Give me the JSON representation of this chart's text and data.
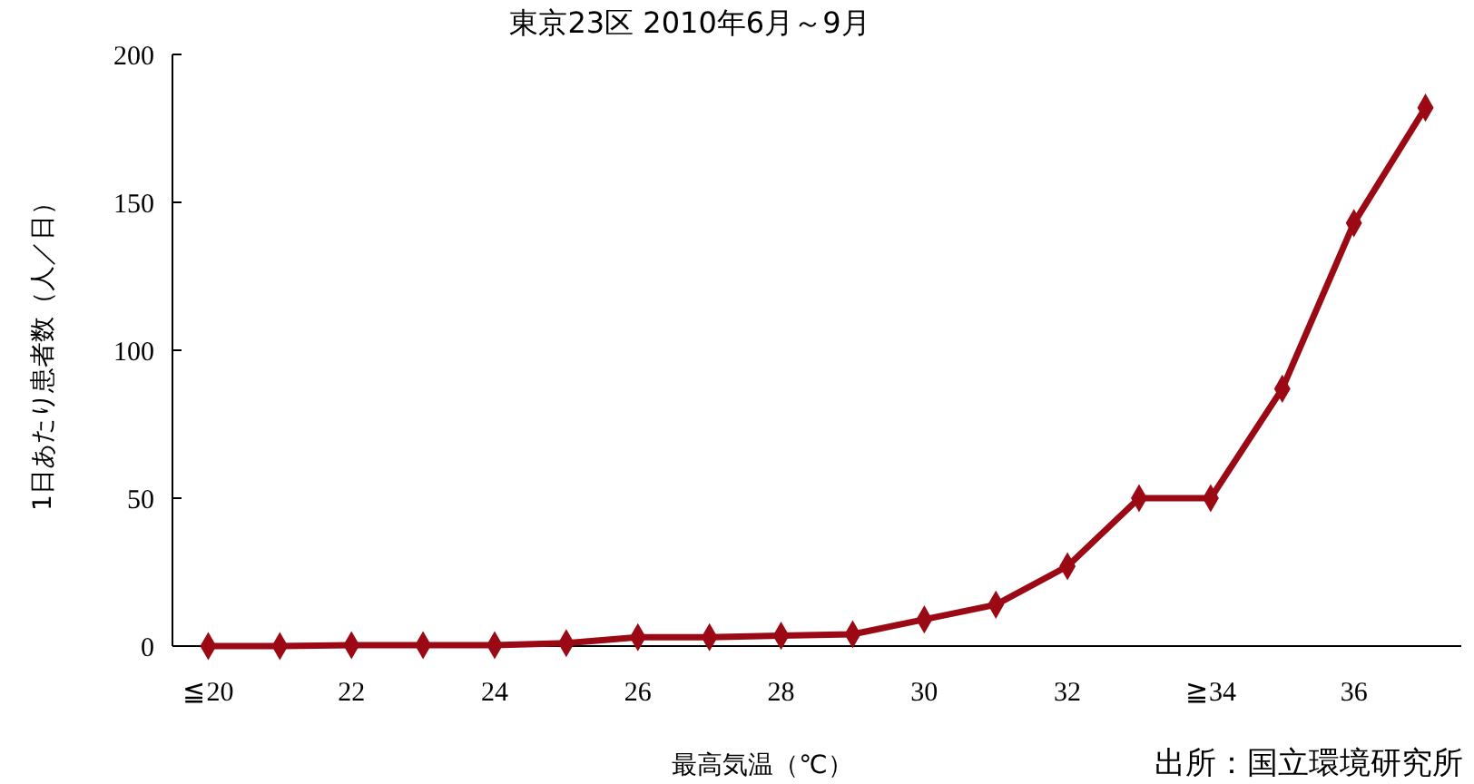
{
  "chart_data": {
    "type": "line",
    "title": "東京23区 2010年6月～9月",
    "xlabel": "最高気温（℃）",
    "ylabel": "1日あたり患者数（人／日）",
    "annotations": [
      "出所：国立環境研究所"
    ],
    "categories": [
      "≦20",
      null,
      "22",
      null,
      "24",
      null,
      "26",
      null,
      "28",
      null,
      "30",
      null,
      "32",
      null,
      "≧34",
      null,
      "36",
      null
    ],
    "series": [
      {
        "color": "#9b0a14",
        "values": [
          0,
          0,
          0.3,
          0.3,
          0.3,
          1,
          3,
          3,
          3.5,
          4,
          9,
          14,
          27,
          50,
          50,
          87,
          143,
          182
        ]
      }
    ],
    "ylim": [
      0,
      200
    ],
    "yticks": [
      0,
      50,
      100,
      150,
      200
    ],
    "marker": "diamond",
    "line_style": "solid",
    "grid": false
  }
}
